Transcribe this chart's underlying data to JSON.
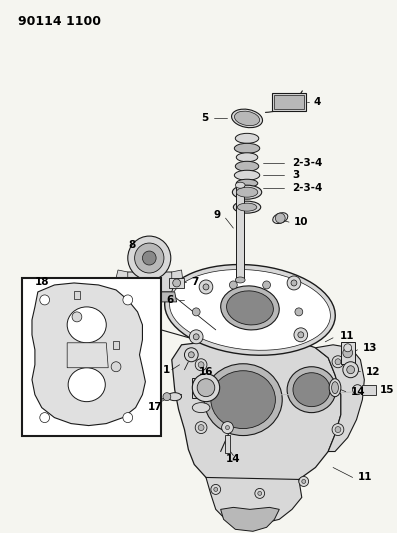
{
  "title": "90114 1100",
  "bg_color": "#f5f5f0",
  "fig_width": 3.97,
  "fig_height": 5.33,
  "dpi": 100,
  "line_color": "#1a1a1a",
  "light_gray": "#d8d8d8",
  "mid_gray": "#b8b8b8",
  "dark_gray": "#888888",
  "white": "#ffffff"
}
